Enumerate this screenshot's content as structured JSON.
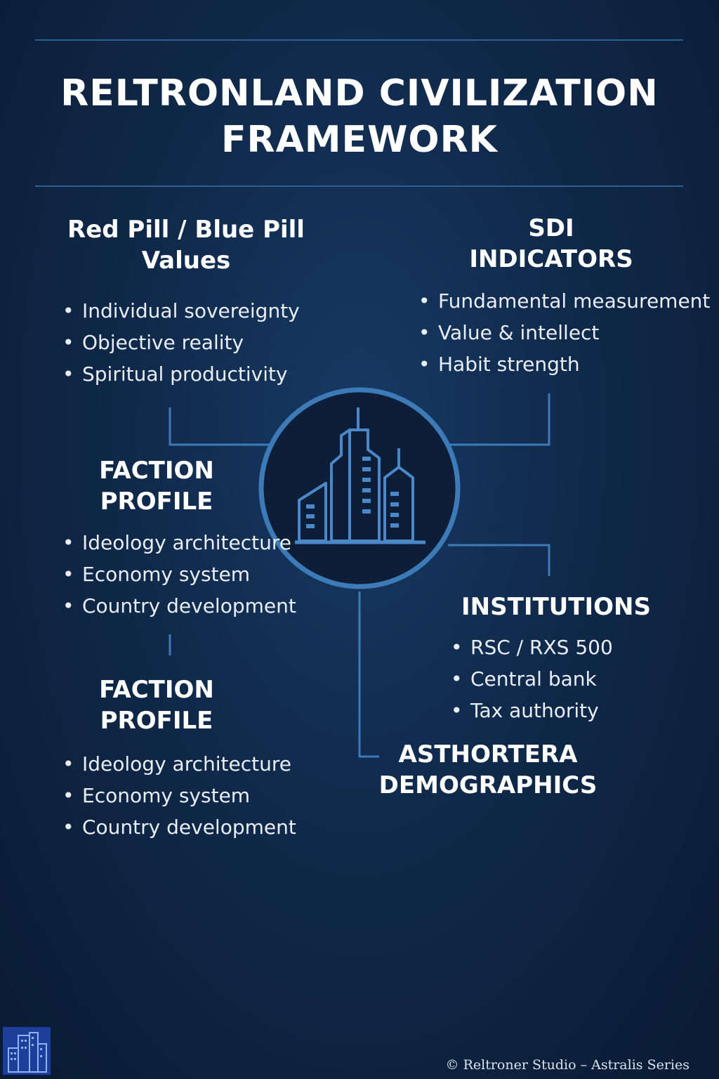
{
  "title": {
    "line1": "RELTRONLAND CIVILIZATION",
    "line2": "FRAMEWORK"
  },
  "sections": {
    "values": {
      "heading_line1": "Red Pill / Blue Pill",
      "heading_line2": "Values",
      "items": [
        "Individual sovereignty",
        "Objective reality",
        "Spiritual productivity"
      ]
    },
    "sdi": {
      "heading_line1": "SDI",
      "heading_line2": "INDICATORS",
      "items": [
        "Fundamental measurement",
        "Value & intellect",
        "Habit strength"
      ]
    },
    "faction1": {
      "heading_line1": "FACTION",
      "heading_line2": "PROFILE",
      "items": [
        "Ideology architecture",
        "Economy system",
        "Country development"
      ]
    },
    "faction2": {
      "heading_line1": "FACTION",
      "heading_line2": "PROFILE",
      "items": [
        "Ideology architecture",
        "Economy system",
        "Country development"
      ]
    },
    "institutions": {
      "heading": "INSTITUTIONS",
      "items": [
        "RSC / RXS 500",
        "Central bank",
        "Tax authority"
      ]
    },
    "demographics": {
      "heading_line1": "ASTHORTERA",
      "heading_line2": "DEMOGRAPHICS"
    }
  },
  "footer": {
    "credit": "© Reltroner Studio – Astralis Series"
  },
  "icons": {
    "center": "city-skyline-icon",
    "corner": "city-logo-icon"
  },
  "colors": {
    "accent": "#3d7ab8",
    "line": "#2f5f90",
    "background": "#10294a"
  }
}
